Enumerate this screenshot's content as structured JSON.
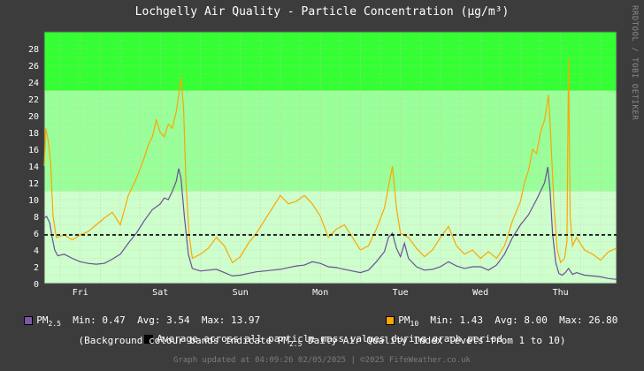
{
  "title": "Lochgelly Air Quality - Particle Concentration (µg/m³)",
  "watermark": "RRDTOOL / TOBI OETIKER",
  "legend": {
    "pm25": {
      "label": "PM",
      "sub": "2.5",
      "min": "Min: 0.47",
      "avg": "Avg: 3.54",
      "max": "Max: 13.97",
      "color": "#7a5aa6"
    },
    "pm10": {
      "label": "PM",
      "sub": "10",
      "min": "Min: 1.43",
      "avg": "Avg: 8.00",
      "max": "Max: 26.80",
      "color": "#ffa500"
    },
    "avg_line": "Average across all particle mass values during graph period",
    "bands_pre": "(Background colour bands indicate PM",
    "bands_sub": "2.5",
    "bands_post": " Daily Air Quality Index levels from 1 to 10)"
  },
  "footer": "Graph updated at 04:09:26 02/05/2025 | ©2025 FifeWeather.co.uk",
  "chart_data": {
    "type": "line",
    "x_unit": "days (Fri 00:00 = 0)",
    "ylim": [
      0,
      30
    ],
    "yticks": [
      0,
      2,
      4,
      6,
      8,
      10,
      12,
      14,
      16,
      18,
      20,
      22,
      24,
      26,
      28
    ],
    "x_ticks": [
      {
        "label": "Fri",
        "x": 0.5
      },
      {
        "label": "Sat",
        "x": 1.5
      },
      {
        "label": "Sun",
        "x": 2.5
      },
      {
        "label": "Mon",
        "x": 3.5
      },
      {
        "label": "Tue",
        "x": 4.5
      },
      {
        "label": "Wed",
        "x": 5.5
      },
      {
        "label": "Thu",
        "x": 6.5
      }
    ],
    "xlim": [
      0.05,
      7.2
    ],
    "grid": true,
    "average_line": 5.8,
    "bands": [
      {
        "from": 0,
        "to": 11,
        "color": "#ccffcc"
      },
      {
        "from": 11,
        "to": 23,
        "color": "#99ff99"
      },
      {
        "from": 23,
        "to": 35,
        "color": "#33ff33"
      },
      {
        "from": 35,
        "to": 41,
        "color": "#ffff00"
      },
      {
        "from": 41,
        "to": 47,
        "color": "#ffcc00"
      },
      {
        "from": 47,
        "to": 53,
        "color": "#ff9900"
      },
      {
        "from": 53,
        "to": 58,
        "color": "#ff6666"
      },
      {
        "from": 58,
        "to": 64,
        "color": "#ff0000"
      },
      {
        "from": 64,
        "to": 70,
        "color": "#990000"
      },
      {
        "from": 70,
        "to": 999,
        "color": "#cc00cc"
      }
    ],
    "series": [
      {
        "name": "PM2.5",
        "color": "#6a4f96",
        "points": [
          [
            0.05,
            7.8
          ],
          [
            0.08,
            8.0
          ],
          [
            0.12,
            7.2
          ],
          [
            0.15,
            5.5
          ],
          [
            0.18,
            4.0
          ],
          [
            0.22,
            3.3
          ],
          [
            0.3,
            3.5
          ],
          [
            0.4,
            3.0
          ],
          [
            0.5,
            2.6
          ],
          [
            0.6,
            2.4
          ],
          [
            0.7,
            2.3
          ],
          [
            0.8,
            2.4
          ],
          [
            0.9,
            2.9
          ],
          [
            1.0,
            3.5
          ],
          [
            1.1,
            4.8
          ],
          [
            1.2,
            6.0
          ],
          [
            1.3,
            7.5
          ],
          [
            1.4,
            8.8
          ],
          [
            1.5,
            9.5
          ],
          [
            1.55,
            10.2
          ],
          [
            1.6,
            10.0
          ],
          [
            1.65,
            11.0
          ],
          [
            1.7,
            12.2
          ],
          [
            1.73,
            13.7
          ],
          [
            1.76,
            12.5
          ],
          [
            1.8,
            8.0
          ],
          [
            1.85,
            3.5
          ],
          [
            1.9,
            1.8
          ],
          [
            2.0,
            1.5
          ],
          [
            2.1,
            1.6
          ],
          [
            2.2,
            1.7
          ],
          [
            2.3,
            1.3
          ],
          [
            2.4,
            0.9
          ],
          [
            2.5,
            1.0
          ],
          [
            2.6,
            1.2
          ],
          [
            2.7,
            1.4
          ],
          [
            2.8,
            1.5
          ],
          [
            2.9,
            1.6
          ],
          [
            3.0,
            1.7
          ],
          [
            3.1,
            1.9
          ],
          [
            3.2,
            2.1
          ],
          [
            3.3,
            2.2
          ],
          [
            3.4,
            2.6
          ],
          [
            3.5,
            2.4
          ],
          [
            3.6,
            2.0
          ],
          [
            3.7,
            1.9
          ],
          [
            3.8,
            1.7
          ],
          [
            3.9,
            1.5
          ],
          [
            4.0,
            1.3
          ],
          [
            4.1,
            1.6
          ],
          [
            4.2,
            2.6
          ],
          [
            4.3,
            3.8
          ],
          [
            4.35,
            5.5
          ],
          [
            4.4,
            6.0
          ],
          [
            4.45,
            4.2
          ],
          [
            4.5,
            3.2
          ],
          [
            4.55,
            4.8
          ],
          [
            4.6,
            3.0
          ],
          [
            4.7,
            2.0
          ],
          [
            4.8,
            1.6
          ],
          [
            4.9,
            1.7
          ],
          [
            5.0,
            2.0
          ],
          [
            5.1,
            2.6
          ],
          [
            5.2,
            2.1
          ],
          [
            5.3,
            1.8
          ],
          [
            5.4,
            2.0
          ],
          [
            5.5,
            2.0
          ],
          [
            5.6,
            1.6
          ],
          [
            5.7,
            2.2
          ],
          [
            5.8,
            3.5
          ],
          [
            5.9,
            5.5
          ],
          [
            6.0,
            7.0
          ],
          [
            6.1,
            8.2
          ],
          [
            6.2,
            10.0
          ],
          [
            6.3,
            12.0
          ],
          [
            6.34,
            13.9
          ],
          [
            6.37,
            11.0
          ],
          [
            6.4,
            6.0
          ],
          [
            6.44,
            2.5
          ],
          [
            6.48,
            1.2
          ],
          [
            6.52,
            1.0
          ],
          [
            6.56,
            1.3
          ],
          [
            6.6,
            1.8
          ],
          [
            6.65,
            1.1
          ],
          [
            6.7,
            1.3
          ],
          [
            6.8,
            1.0
          ],
          [
            6.9,
            0.9
          ],
          [
            7.0,
            0.8
          ],
          [
            7.1,
            0.6
          ],
          [
            7.2,
            0.5
          ]
        ]
      },
      {
        "name": "PM10",
        "color": "#ffa500",
        "points": [
          [
            0.05,
            14.0
          ],
          [
            0.07,
            18.5
          ],
          [
            0.1,
            17.0
          ],
          [
            0.13,
            14.5
          ],
          [
            0.16,
            8.0
          ],
          [
            0.2,
            5.5
          ],
          [
            0.3,
            5.8
          ],
          [
            0.4,
            5.2
          ],
          [
            0.5,
            5.8
          ],
          [
            0.6,
            6.2
          ],
          [
            0.7,
            7.0
          ],
          [
            0.8,
            7.8
          ],
          [
            0.9,
            8.5
          ],
          [
            1.0,
            7.0
          ],
          [
            1.1,
            10.5
          ],
          [
            1.2,
            12.5
          ],
          [
            1.3,
            15.0
          ],
          [
            1.35,
            16.5
          ],
          [
            1.4,
            17.5
          ],
          [
            1.45,
            19.5
          ],
          [
            1.5,
            18.0
          ],
          [
            1.55,
            17.5
          ],
          [
            1.6,
            19.0
          ],
          [
            1.65,
            18.5
          ],
          [
            1.7,
            20.5
          ],
          [
            1.73,
            22.5
          ],
          [
            1.76,
            24.5
          ],
          [
            1.79,
            21.0
          ],
          [
            1.82,
            12.0
          ],
          [
            1.86,
            5.8
          ],
          [
            1.9,
            3.0
          ],
          [
            2.0,
            3.5
          ],
          [
            2.1,
            4.2
          ],
          [
            2.2,
            5.5
          ],
          [
            2.3,
            4.5
          ],
          [
            2.4,
            2.5
          ],
          [
            2.5,
            3.2
          ],
          [
            2.6,
            4.8
          ],
          [
            2.7,
            6.0
          ],
          [
            2.8,
            7.5
          ],
          [
            2.9,
            9.0
          ],
          [
            3.0,
            10.5
          ],
          [
            3.1,
            9.5
          ],
          [
            3.2,
            9.8
          ],
          [
            3.3,
            10.5
          ],
          [
            3.4,
            9.5
          ],
          [
            3.5,
            8.0
          ],
          [
            3.6,
            5.5
          ],
          [
            3.7,
            6.5
          ],
          [
            3.8,
            7.0
          ],
          [
            3.9,
            5.5
          ],
          [
            4.0,
            4.0
          ],
          [
            4.1,
            4.5
          ],
          [
            4.2,
            6.5
          ],
          [
            4.3,
            9.0
          ],
          [
            4.35,
            11.5
          ],
          [
            4.4,
            14.0
          ],
          [
            4.45,
            9.0
          ],
          [
            4.5,
            6.0
          ],
          [
            4.6,
            5.5
          ],
          [
            4.7,
            4.2
          ],
          [
            4.8,
            3.2
          ],
          [
            4.9,
            4.0
          ],
          [
            5.0,
            5.5
          ],
          [
            5.1,
            6.8
          ],
          [
            5.2,
            4.5
          ],
          [
            5.3,
            3.5
          ],
          [
            5.4,
            4.0
          ],
          [
            5.5,
            3.0
          ],
          [
            5.6,
            3.8
          ],
          [
            5.7,
            3.0
          ],
          [
            5.8,
            4.5
          ],
          [
            5.9,
            7.5
          ],
          [
            6.0,
            9.8
          ],
          [
            6.05,
            12.0
          ],
          [
            6.1,
            13.5
          ],
          [
            6.15,
            16.0
          ],
          [
            6.2,
            15.5
          ],
          [
            6.25,
            18.0
          ],
          [
            6.3,
            19.5
          ],
          [
            6.35,
            22.5
          ],
          [
            6.38,
            17.0
          ],
          [
            6.42,
            9.0
          ],
          [
            6.46,
            4.0
          ],
          [
            6.5,
            2.5
          ],
          [
            6.55,
            3.0
          ],
          [
            6.58,
            5.0
          ],
          [
            6.6,
            26.8
          ],
          [
            6.62,
            8.0
          ],
          [
            6.65,
            4.5
          ],
          [
            6.7,
            5.5
          ],
          [
            6.8,
            4.0
          ],
          [
            6.9,
            3.5
          ],
          [
            7.0,
            2.8
          ],
          [
            7.1,
            3.8
          ],
          [
            7.2,
            4.2
          ]
        ]
      }
    ]
  }
}
